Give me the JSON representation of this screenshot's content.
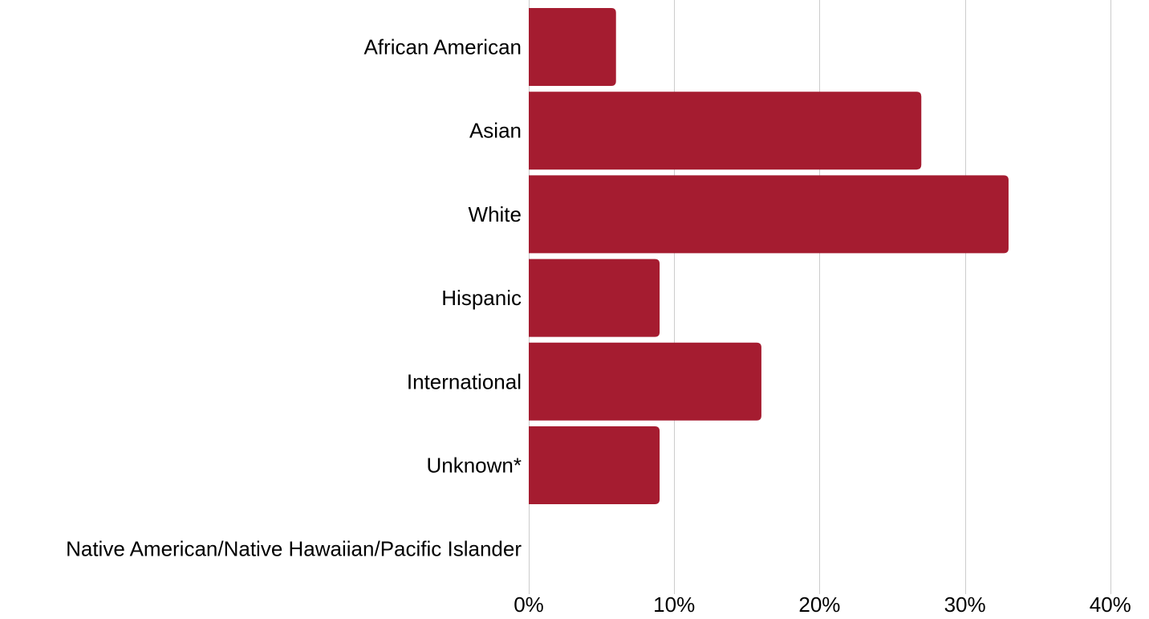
{
  "chart_data": {
    "type": "bar",
    "orientation": "horizontal",
    "categories": [
      "African American",
      "Asian",
      "White",
      "Hispanic",
      "International",
      "Unknown*",
      "Native American/Native Hawaiian/Pacific Islander"
    ],
    "values": [
      6,
      27,
      33,
      9,
      16,
      9,
      0
    ],
    "xlim": [
      0,
      40
    ],
    "x_ticks": [
      0,
      10,
      20,
      30,
      40
    ],
    "x_tick_labels": [
      "0%",
      "10%",
      "20%",
      "30%",
      "40%"
    ],
    "bar_color": "#a51c30",
    "grid": true,
    "legend": "none"
  }
}
